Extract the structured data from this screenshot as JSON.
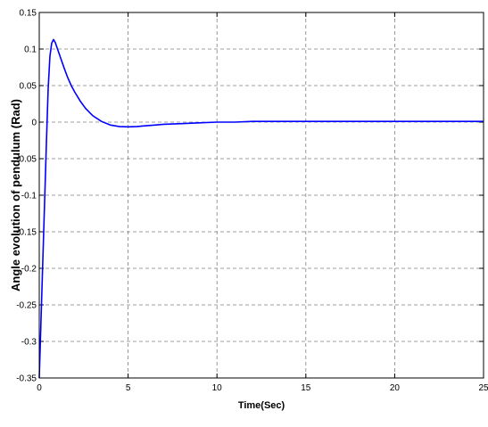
{
  "chart_data": {
    "type": "line",
    "title": "",
    "xlabel": "Time(Sec)",
    "ylabel": "Angle evolution of pendulum (Rad)",
    "xlim": [
      0,
      25
    ],
    "ylim": [
      -0.35,
      0.15
    ],
    "x_ticks": [
      "0",
      "5",
      "10",
      "15",
      "20",
      "25"
    ],
    "y_ticks": [
      "0.15",
      "0.1",
      "0.05",
      "0",
      "-0.05",
      "-0.1",
      "-0.15",
      "-0.2",
      "-0.25",
      "-0.3",
      "-0.35"
    ],
    "grid": true,
    "line_color": "#0000ff",
    "series": [
      {
        "x": [
          0,
          0.1,
          0.2,
          0.3,
          0.4,
          0.5,
          0.6,
          0.7,
          0.8,
          0.9,
          1.0,
          1.2,
          1.4,
          1.6,
          1.8,
          2.0,
          2.3,
          2.6,
          3.0,
          3.5,
          4.0,
          4.5,
          5.0,
          5.5,
          6.0,
          6.5,
          7.0,
          8.0,
          9.0,
          10.0,
          11.0,
          12.0,
          15.0,
          20.0,
          25.0
        ],
        "y": [
          -0.35,
          -0.27,
          -0.19,
          -0.11,
          -0.03,
          0.045,
          0.09,
          0.108,
          0.113,
          0.109,
          0.102,
          0.088,
          0.074,
          0.061,
          0.05,
          0.041,
          0.029,
          0.019,
          0.009,
          0.001,
          -0.004,
          -0.006,
          -0.0065,
          -0.006,
          -0.005,
          -0.004,
          -0.003,
          -0.002,
          -0.001,
          0.0,
          0.0,
          0.001,
          0.001,
          0.001,
          0.001
        ]
      }
    ]
  }
}
